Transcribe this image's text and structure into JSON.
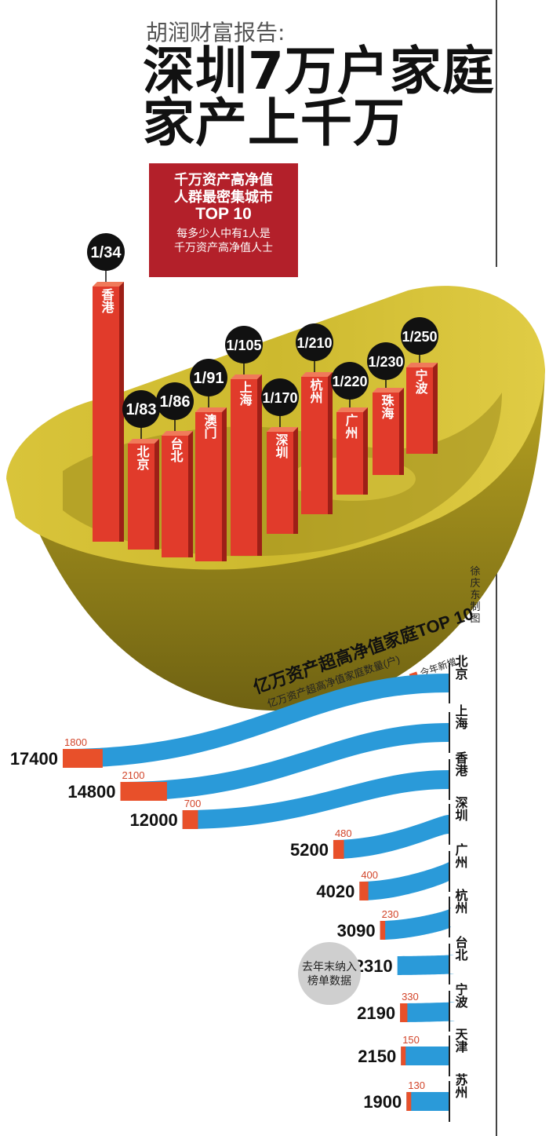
{
  "header": {
    "kicker": "胡润财富报告:",
    "headline_line1": "深圳7万户家庭",
    "headline_line2": "家产上千万"
  },
  "red_box": {
    "title_line1": "千万资产高净值",
    "title_line2": "人群最密集城市",
    "title_line3": "TOP 10",
    "sub_line1": "每多少人中有1人是",
    "sub_line2": "千万资产高净值人士"
  },
  "credit": "徐庆东制图",
  "note_bubble": {
    "line1": "去年末纳入",
    "line2": "榜单数据"
  },
  "colors": {
    "gold": "#c9b52a",
    "gold_dark": "#8f7f1a",
    "bar_red": "#e13b2b",
    "circle": "#111111",
    "blue": "#2a9ad9",
    "new_orange": "#e8502a",
    "title_red": "#b3202a"
  },
  "chart_data": [
    {
      "type": "bar",
      "title": "千万资产高净值人群最密集城市TOP 10",
      "subtitle": "每多少人中有1人是千万资产高净值人士",
      "categories": [
        "香港",
        "北京",
        "台北",
        "澳门",
        "上海",
        "深圳",
        "杭州",
        "广州",
        "珠海",
        "宁波"
      ],
      "labels": [
        "1/34",
        "1/83",
        "1/86",
        "1/91",
        "1/105",
        "1/170",
        "1/210",
        "1/220",
        "1/230",
        "1/250"
      ],
      "values": [
        34,
        83,
        86,
        91,
        105,
        170,
        210,
        220,
        230,
        250
      ]
    },
    {
      "type": "bar",
      "title": "亿万资产超高净值家庭TOP 10",
      "ylabel": "亿万资产超高净值家庭数量(户)",
      "legend": "今年新增",
      "categories": [
        "北京",
        "上海",
        "香港",
        "深圳",
        "广州",
        "杭州",
        "台北",
        "宁波",
        "天津",
        "苏州"
      ],
      "series": [
        {
          "name": "",
          "values": [
            17400,
            14800,
            12000,
            5200,
            4020,
            3090,
            2310,
            2190,
            2150,
            1900
          ]
        },
        {
          "name": "今年新增",
          "values": [
            1800,
            2100,
            700,
            480,
            400,
            230,
            null,
            330,
            150,
            130
          ]
        }
      ],
      "value_labels": [
        "17400",
        "14800",
        "12000",
        "5200",
        "4020",
        "3090",
        "2310",
        "2190",
        "2150",
        "1900"
      ],
      "new_labels": [
        "1800",
        "2100",
        "700",
        "480",
        "400",
        "230",
        "",
        "330",
        "150",
        "130"
      ]
    }
  ]
}
